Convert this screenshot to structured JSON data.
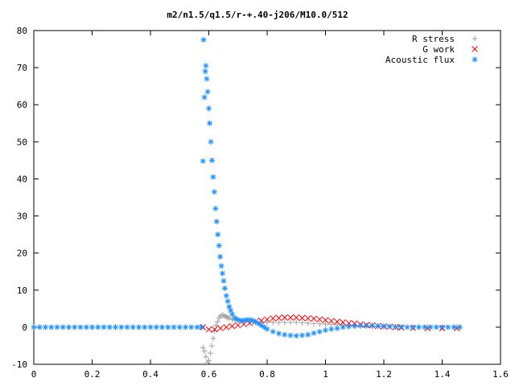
{
  "chart_data": {
    "type": "scatter",
    "title": "m2/n1.5/q1.5/r-+.40-j206/M10.0/512",
    "xlabel": "",
    "ylabel": "",
    "xlim": [
      0,
      1.6
    ],
    "ylim": [
      -10,
      80
    ],
    "x_ticks": [
      "0",
      "0.2",
      "0.4",
      "0.6",
      "0.8",
      "1",
      "1.2",
      "1.4",
      "1.6"
    ],
    "y_ticks": [
      "-10",
      "0",
      "10",
      "20",
      "30",
      "40",
      "50",
      "60",
      "70",
      "80"
    ],
    "grid": false,
    "legend_position": "top-right",
    "series": [
      {
        "name": "R stress",
        "marker": "plus",
        "color": "#a0a0a0",
        "x": [
          0.58,
          0.585,
          0.59,
          0.595,
          0.6,
          0.605,
          0.61,
          0.615,
          0.62,
          0.625,
          0.63,
          0.635,
          0.64,
          0.645,
          0.65,
          0.655,
          0.66,
          0.665,
          0.67,
          0.68,
          0.69,
          0.7,
          0.72,
          0.74,
          0.76,
          0.78,
          0.8,
          0.82,
          0.84,
          0.86,
          0.88,
          0.9,
          0.92,
          0.94,
          0.96,
          0.98,
          1.0,
          1.02,
          1.04,
          1.06,
          1.08,
          1.1,
          1.12,
          1.14,
          1.16,
          1.18,
          1.2,
          1.25,
          1.3,
          1.35,
          1.4,
          1.45,
          1.46
        ],
        "y": [
          -5.5,
          -6.5,
          -8,
          -9.5,
          -9,
          -7,
          -5,
          -3,
          -1,
          0.5,
          1.5,
          2.5,
          3,
          3.2,
          3.2,
          3,
          2.8,
          2.6,
          2.4,
          2.1,
          1.9,
          1.8,
          1.6,
          1.4,
          1.3,
          1.3,
          1.3,
          1.3,
          1.3,
          1.3,
          1.3,
          1.3,
          1.2,
          1.1,
          1.0,
          0.9,
          0.8,
          0.7,
          0.6,
          0.5,
          0.5,
          0.4,
          0.3,
          0.3,
          0.2,
          0.2,
          0.1,
          0.1,
          0,
          0,
          0,
          0,
          0
        ]
      },
      {
        "name": "G work",
        "marker": "cross",
        "color": "#ff0000",
        "x": [
          0.58,
          0.6,
          0.62,
          0.64,
          0.66,
          0.68,
          0.7,
          0.72,
          0.74,
          0.76,
          0.78,
          0.8,
          0.82,
          0.84,
          0.86,
          0.88,
          0.9,
          0.92,
          0.94,
          0.96,
          0.98,
          1.0,
          1.02,
          1.04,
          1.06,
          1.08,
          1.1,
          1.12,
          1.14,
          1.16,
          1.18,
          1.2,
          1.22,
          1.24,
          1.26,
          1.3,
          1.35,
          1.4,
          1.45
        ],
        "y": [
          0,
          -0.6,
          -0.6,
          -0.3,
          0,
          0.3,
          0.5,
          0.8,
          1.1,
          1.5,
          1.8,
          2.1,
          2.4,
          2.5,
          2.6,
          2.6,
          2.6,
          2.5,
          2.4,
          2.3,
          2.1,
          1.9,
          1.7,
          1.5,
          1.3,
          1.1,
          1.0,
          0.8,
          0.6,
          0.5,
          0.3,
          0.2,
          0.1,
          0,
          -0.1,
          -0.2,
          -0.3,
          -0.3,
          -0.3
        ]
      },
      {
        "name": "Acoustic flux",
        "marker": "star",
        "color": "#1e90ff",
        "x": [
          0.0,
          0.02,
          0.04,
          0.06,
          0.08,
          0.1,
          0.12,
          0.14,
          0.16,
          0.18,
          0.2,
          0.22,
          0.24,
          0.26,
          0.28,
          0.3,
          0.32,
          0.34,
          0.36,
          0.38,
          0.4,
          0.42,
          0.44,
          0.46,
          0.48,
          0.5,
          0.52,
          0.54,
          0.56,
          0.575,
          0.58,
          0.582,
          0.585,
          0.588,
          0.59,
          0.593,
          0.596,
          0.6,
          0.603,
          0.607,
          0.611,
          0.615,
          0.619,
          0.623,
          0.627,
          0.631,
          0.635,
          0.639,
          0.643,
          0.647,
          0.651,
          0.655,
          0.66,
          0.665,
          0.67,
          0.675,
          0.68,
          0.69,
          0.7,
          0.71,
          0.72,
          0.73,
          0.74,
          0.75,
          0.76,
          0.77,
          0.78,
          0.79,
          0.8,
          0.82,
          0.84,
          0.86,
          0.88,
          0.9,
          0.92,
          0.94,
          0.96,
          0.98,
          1.0,
          1.02,
          1.04,
          1.06,
          1.08,
          1.1,
          1.12,
          1.14,
          1.16,
          1.18,
          1.2,
          1.22,
          1.24,
          1.26,
          1.28,
          1.3,
          1.32,
          1.34,
          1.36,
          1.38,
          1.4,
          1.42,
          1.44,
          1.46
        ],
        "y": [
          0,
          0,
          0,
          0,
          0,
          0,
          0,
          0,
          0,
          0,
          0,
          0,
          0,
          0,
          0,
          0,
          0,
          0,
          0,
          0,
          0,
          0,
          0,
          0,
          0,
          0,
          0,
          0,
          0,
          0,
          44.8,
          77.5,
          62,
          69,
          70.5,
          67,
          63.5,
          59,
          55,
          50,
          45,
          40.5,
          36.5,
          32,
          28.5,
          25,
          22,
          19,
          16.5,
          14.5,
          12.5,
          10.5,
          8.5,
          7,
          5.5,
          4.5,
          3.5,
          2.5,
          2,
          1.8,
          1.8,
          2,
          2,
          1.8,
          1.5,
          1,
          0.5,
          0,
          -0.5,
          -1.2,
          -1.7,
          -2,
          -2.2,
          -2.3,
          -2.2,
          -2,
          -1.6,
          -1.2,
          -0.8,
          -0.5,
          -0.3,
          0,
          0.2,
          0.3,
          0.4,
          0.4,
          0.4,
          0.3,
          0.3,
          0.2,
          0.1,
          0.1,
          0,
          0,
          0,
          0,
          0,
          0,
          0,
          0,
          0,
          0
        ]
      }
    ]
  }
}
